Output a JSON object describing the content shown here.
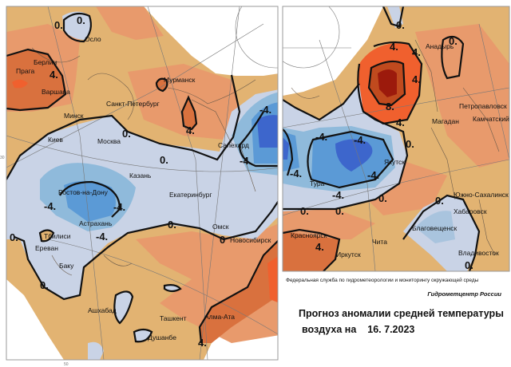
{
  "left_map": {
    "cities": [
      "Осло",
      "Берлин",
      "Прага",
      "Варшава",
      "Мурманск",
      "Санкт-Петербург",
      "Минск",
      "Киев",
      "Москва",
      "Салехард",
      "Казань",
      "Ростов-на-Дону",
      "Екатеринбург",
      "Астрахань",
      "Омск",
      "Тбилиси",
      "Новосибирск",
      "Ереван",
      "Баку",
      "Ашхабад",
      "Ташкент",
      "Алма-Ата",
      "Душанбе"
    ],
    "isolines": [
      "0.",
      "0.",
      "4.",
      "4.",
      "0.",
      "0.",
      "-4.",
      "-4.",
      "-4.",
      "-4.",
      "-4.",
      "0.",
      "0",
      "0.",
      "0.",
      "4."
    ],
    "grid_labels": [
      "30",
      "50"
    ]
  },
  "right_map": {
    "cities": [
      "Анадырь",
      "Петропавловск",
      "Камчатский",
      "Магадан",
      "Якутск",
      "Тура",
      "Южно-Сахалинск",
      "Хабаровск",
      "Благовещенск",
      "Красноярск",
      "Чита",
      "Иркутск",
      "Владивосток"
    ],
    "isolines": [
      "0.",
      "0.",
      "4.",
      "4.",
      "4.",
      "8.",
      "4.",
      "-4.",
      "-4.",
      "0.",
      "-4.",
      "-4.",
      "-4.",
      "0.",
      "0.",
      "0.",
      "0.",
      "4.",
      "0."
    ]
  },
  "info": {
    "agency": "Федеральная служба по гидрометеорологии и мониторингу окружающей среды",
    "center": "Гидрометцентр России",
    "title_line1": "Прогноз аномалии средней температуры",
    "title_line2": "воздуха на",
    "date": "16. 7.2023"
  },
  "colors": {
    "tan": "#e2b372",
    "light_orange": "#e89a6c",
    "orange": "#d9713e",
    "red": "#f0602e",
    "dark_red": "#9c1a0c",
    "light_blue": "#c9d3e6",
    "mid_blue": "#8fbadb",
    "blue": "#5b9ad6",
    "dark_blue": "#3d66cc"
  }
}
